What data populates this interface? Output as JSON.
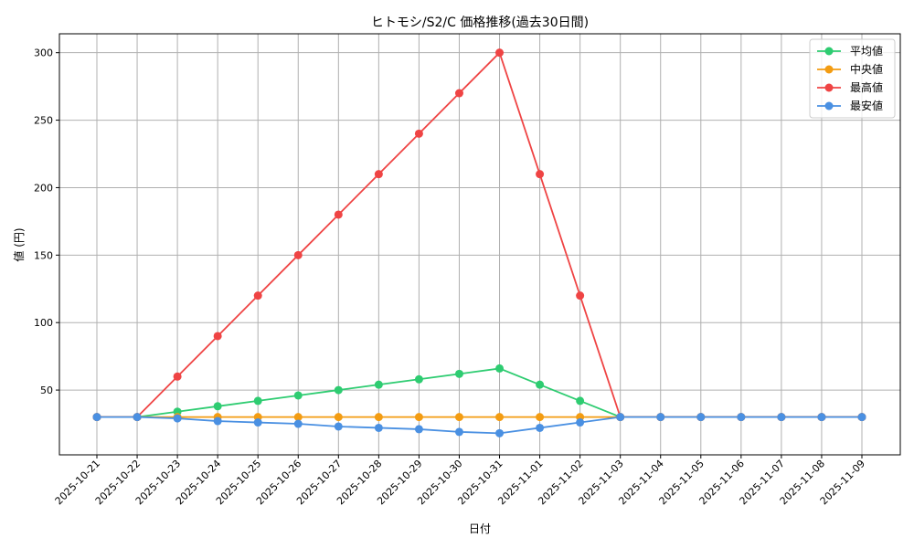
{
  "chart_data": {
    "type": "line",
    "title": "ヒトモシ/S2/C 価格推移(過去30日間)",
    "xlabel": "日付",
    "ylabel": "値 (円)",
    "categories": [
      "2025-10-21",
      "2025-10-22",
      "2025-10-23",
      "2025-10-24",
      "2025-10-25",
      "2025-10-26",
      "2025-10-27",
      "2025-10-28",
      "2025-10-29",
      "2025-10-30",
      "2025-10-31",
      "2025-11-01",
      "2025-11-02",
      "2025-11-03",
      "2025-11-04",
      "2025-11-05",
      "2025-11-06",
      "2025-11-07",
      "2025-11-08",
      "2025-11-09"
    ],
    "ylim": [
      2,
      314
    ],
    "yticks": [
      50,
      100,
      150,
      200,
      250,
      300
    ],
    "grid": true,
    "legend_position": "top-right",
    "series": [
      {
        "name": "平均値",
        "color": "#2ecc71",
        "values": [
          30,
          30,
          34,
          38,
          42,
          46,
          50,
          54,
          58,
          62,
          66,
          54,
          42,
          30,
          30,
          30,
          30,
          30,
          30,
          30
        ]
      },
      {
        "name": "中央値",
        "color": "#f39c12",
        "values": [
          30,
          30,
          30,
          30,
          30,
          30,
          30,
          30,
          30,
          30,
          30,
          30,
          30,
          30,
          30,
          30,
          30,
          30,
          30,
          30
        ]
      },
      {
        "name": "最高値",
        "color": "#ef4444",
        "values": [
          30,
          30,
          60,
          90,
          120,
          150,
          180,
          210,
          240,
          270,
          300,
          210,
          120,
          30,
          30,
          30,
          30,
          30,
          30,
          30
        ]
      },
      {
        "name": "最安値",
        "color": "#4a90e2",
        "values": [
          30,
          30,
          29,
          27,
          26,
          25,
          23,
          22,
          21,
          19,
          18,
          22,
          26,
          30,
          30,
          30,
          30,
          30,
          30,
          30
        ]
      }
    ]
  }
}
